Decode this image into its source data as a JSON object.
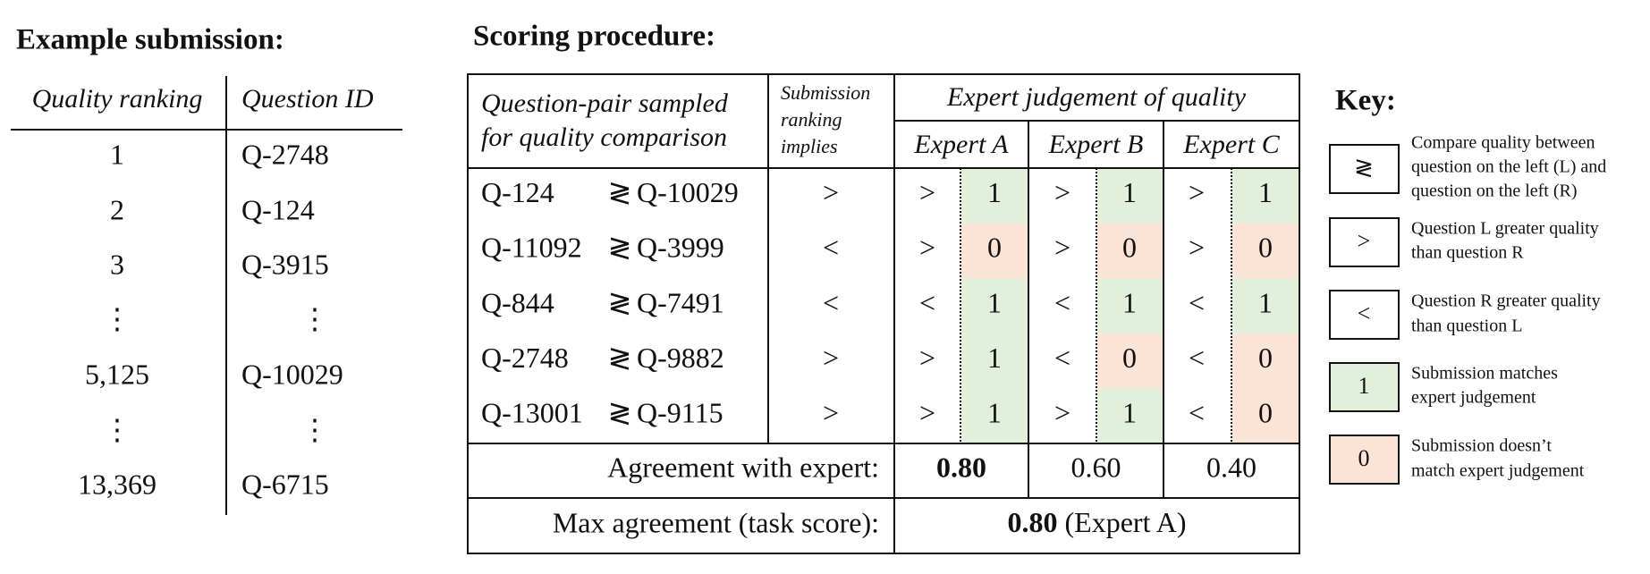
{
  "example": {
    "title": "Example submission:",
    "headers": [
      "Quality ranking",
      "Question ID"
    ],
    "rows": [
      [
        "1",
        "Q-2748"
      ],
      [
        "2",
        "Q-124"
      ],
      [
        "3",
        "Q-3915"
      ],
      [
        "⋮",
        "⋮"
      ],
      [
        "5,125",
        "Q-10029"
      ],
      [
        "⋮",
        "⋮"
      ],
      [
        "13,369",
        "Q-6715"
      ]
    ]
  },
  "scoring": {
    "title": "Scoring procedure:",
    "headers": {
      "pair": [
        "Question-pair sampled",
        "for quality comparison"
      ],
      "implies": [
        "Submission",
        "ranking",
        "implies"
      ],
      "expert_group": "Expert judgement of quality",
      "experts": [
        "Expert A",
        "Expert B",
        "Expert C"
      ]
    },
    "rows": [
      {
        "left": "Q-124",
        "symbol": "≷",
        "right": "Q-10029",
        "implies": ">",
        "judgements": [
          [
            ">",
            "1"
          ],
          [
            ">",
            "1"
          ],
          [
            ">",
            "1"
          ]
        ]
      },
      {
        "left": "Q-11092",
        "symbol": "≷",
        "right": "Q-3999",
        "implies": "<",
        "judgements": [
          [
            ">",
            "0"
          ],
          [
            ">",
            "0"
          ],
          [
            ">",
            "0"
          ]
        ]
      },
      {
        "left": "Q-844",
        "symbol": "≷",
        "right": "Q-7491",
        "implies": "<",
        "judgements": [
          [
            "<",
            "1"
          ],
          [
            "<",
            "1"
          ],
          [
            "<",
            "1"
          ]
        ]
      },
      {
        "left": "Q-2748",
        "symbol": "≷",
        "right": "Q-9882",
        "implies": ">",
        "judgements": [
          [
            ">",
            "1"
          ],
          [
            "<",
            "0"
          ],
          [
            "<",
            "0"
          ]
        ]
      },
      {
        "left": "Q-13001",
        "symbol": "≷",
        "right": "Q-9115",
        "implies": ">",
        "judgements": [
          [
            ">",
            "1"
          ],
          [
            ">",
            "1"
          ],
          [
            "<",
            "0"
          ]
        ]
      }
    ],
    "agreement": {
      "label": "Agreement with expert:",
      "values": [
        "0.80",
        "0.60",
        "0.40"
      ]
    },
    "max": {
      "label": "Max agreement (task score):",
      "value": "0.80",
      "expert": "(Expert A)"
    }
  },
  "key": {
    "title": "Key:",
    "items": [
      {
        "symbol": "≷",
        "lines": [
          "Compare quality between",
          "question on the left (L) and",
          "question on the left (R)"
        ]
      },
      {
        "symbol": ">",
        "lines": [
          "Question L greater quality",
          "than question R"
        ]
      },
      {
        "symbol": "<",
        "lines": [
          "Question R greater quality",
          "than question L"
        ]
      },
      {
        "symbol": "1",
        "lines": [
          "Submission matches",
          "expert judgement"
        ]
      },
      {
        "symbol": "0",
        "lines": [
          "Submission doesn’t",
          "match expert judgement"
        ]
      }
    ]
  }
}
